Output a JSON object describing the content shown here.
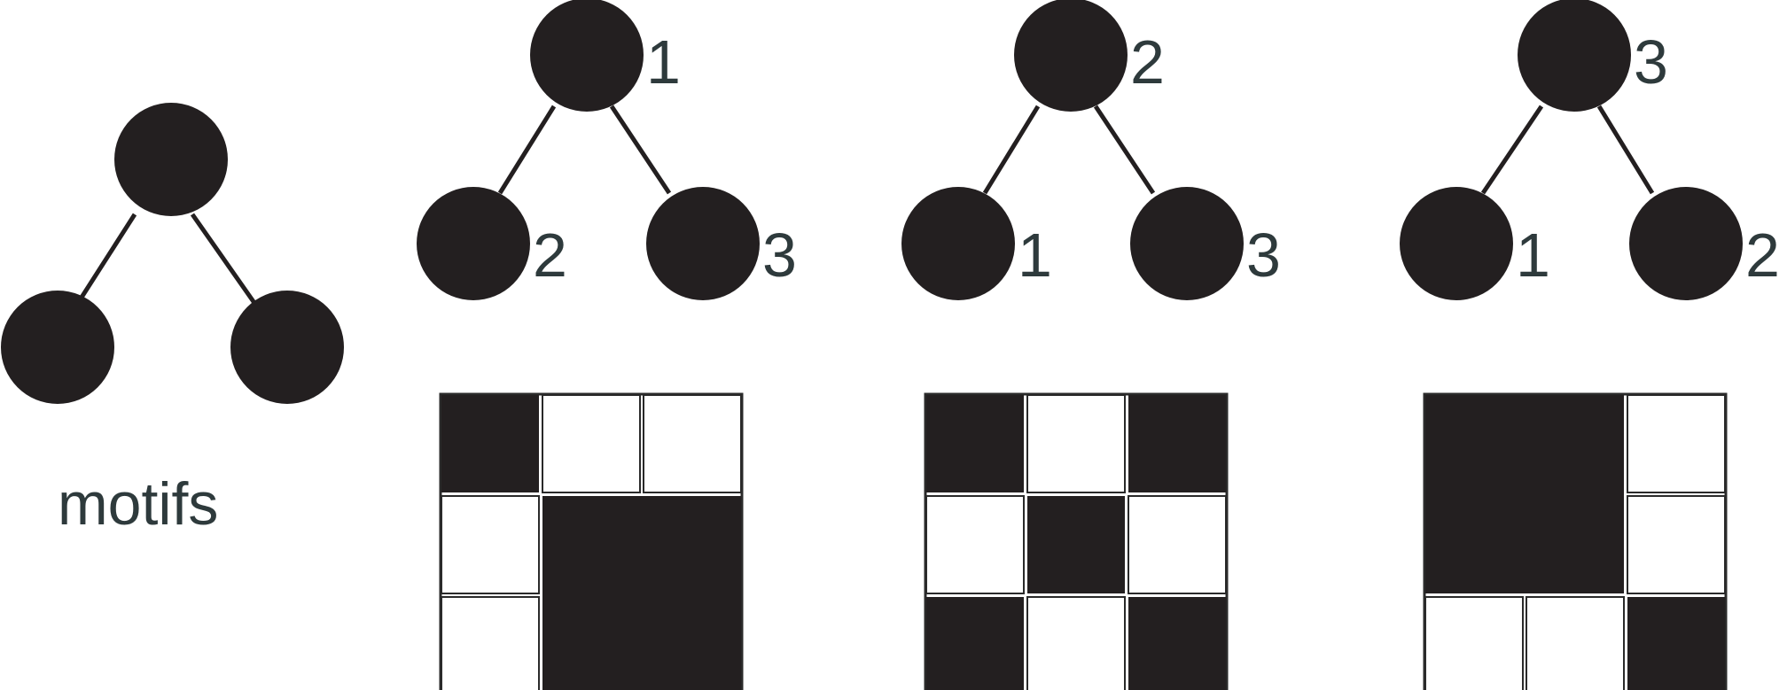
{
  "caption": "motifs",
  "colors": {
    "node": "#231f20",
    "edge": "#231f20",
    "label": "#2e3a3c",
    "cell_filled": "#231f20",
    "cell_empty": "#ffffff",
    "grid_line": "#2a2a2a"
  },
  "motif_template": {
    "root": "node",
    "children": [
      "node",
      "node"
    ]
  },
  "labelings": [
    {
      "root_label": "1",
      "left_label": "2",
      "right_label": "3",
      "matrix": [
        [
          1,
          0,
          0
        ],
        [
          0,
          1,
          1
        ],
        [
          0,
          1,
          1
        ]
      ]
    },
    {
      "root_label": "2",
      "left_label": "1",
      "right_label": "3",
      "matrix": [
        [
          1,
          0,
          1
        ],
        [
          0,
          1,
          0
        ],
        [
          1,
          0,
          1
        ]
      ]
    },
    {
      "root_label": "3",
      "left_label": "1",
      "right_label": "2",
      "matrix": [
        [
          1,
          1,
          0
        ],
        [
          1,
          1,
          0
        ],
        [
          0,
          0,
          1
        ]
      ]
    }
  ]
}
